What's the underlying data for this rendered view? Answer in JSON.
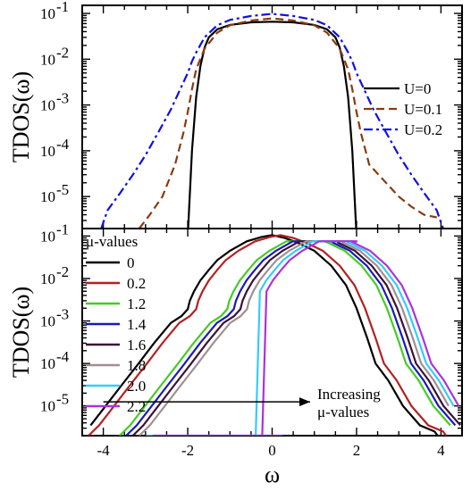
{
  "chart_data": [
    {
      "type": "line",
      "panel": "top",
      "ylabel": "TDOS(ω)",
      "yscale": "log",
      "xlim": [
        -4.5,
        4.5
      ],
      "ylim": [
        2e-06,
        0.15
      ],
      "yticks": [
        {
          "value": 0.1,
          "label": "10",
          "exp": "-1"
        },
        {
          "value": 0.01,
          "label": "10",
          "exp": "-2"
        },
        {
          "value": 0.001,
          "label": "10",
          "exp": "-3"
        },
        {
          "value": 0.0001,
          "label": "10",
          "exp": "-4"
        },
        {
          "value": 1e-05,
          "label": "10",
          "exp": "-5"
        }
      ],
      "legend_position": "right",
      "series": [
        {
          "name": "U=0",
          "color": "#000000",
          "dash": "solid",
          "x": [
            -1.99,
            -1.9,
            -1.8,
            -1.7,
            -1.6,
            -1.5,
            -1.3,
            -1.0,
            -0.5,
            0,
            0.5,
            1.0,
            1.3,
            1.5,
            1.6,
            1.7,
            1.8,
            1.9,
            1.99
          ],
          "y": [
            2e-06,
            0.0001,
            0.0015,
            0.007,
            0.018,
            0.03,
            0.045,
            0.056,
            0.064,
            0.066,
            0.064,
            0.056,
            0.045,
            0.03,
            0.018,
            0.007,
            0.0015,
            0.0001,
            2e-06
          ]
        },
        {
          "name": "U=0.1",
          "color": "#8b3a0f",
          "dash": "dashed",
          "x": [
            -3.15,
            -2.9,
            -2.6,
            -2.3,
            -2.1,
            -2.0,
            -1.9,
            -1.8,
            -1.6,
            -1.3,
            -1.0,
            -0.5,
            0,
            0.5,
            1.0,
            1.3,
            1.6,
            1.8,
            1.9,
            2.0,
            2.1,
            2.3,
            2.6,
            3.0,
            3.3,
            3.6,
            3.9
          ],
          "y": [
            2e-06,
            4e-06,
            1e-05,
            5e-05,
            0.00025,
            0.0007,
            0.0022,
            0.006,
            0.017,
            0.038,
            0.055,
            0.07,
            0.078,
            0.07,
            0.055,
            0.038,
            0.017,
            0.006,
            0.0022,
            0.0007,
            0.00025,
            5e-05,
            2.5e-05,
            1e-05,
            6e-06,
            4e-06,
            3.5e-06
          ]
        },
        {
          "name": "U=0.2",
          "color": "#1010e0",
          "dash": "dashdot",
          "x": [
            -4.05,
            -3.9,
            -3.6,
            -3.3,
            -3.0,
            -2.7,
            -2.4,
            -2.2,
            -2.0,
            -1.9,
            -1.8,
            -1.6,
            -1.3,
            -1.0,
            -0.5,
            0,
            0.5,
            1.0,
            1.3,
            1.6,
            1.8,
            1.9,
            2.0,
            2.2,
            2.4,
            2.7,
            3.0,
            3.3,
            3.6,
            3.9,
            4.05
          ],
          "y": [
            2e-06,
            5e-06,
            1.2e-05,
            3e-05,
            8e-05,
            0.00025,
            0.0008,
            0.002,
            0.005,
            0.009,
            0.014,
            0.03,
            0.055,
            0.072,
            0.088,
            0.098,
            0.088,
            0.072,
            0.055,
            0.03,
            0.014,
            0.009,
            0.005,
            0.002,
            0.0008,
            0.00025,
            8e-05,
            3e-05,
            1.2e-05,
            5e-06,
            2e-06
          ]
        }
      ]
    },
    {
      "type": "line",
      "panel": "bottom",
      "xlabel": "ω",
      "ylabel": "TDOS(ω)",
      "yscale": "log",
      "xlim": [
        -4.5,
        4.5
      ],
      "ylim": [
        2e-06,
        0.15
      ],
      "xticks": [
        -4,
        -2,
        0,
        2,
        4
      ],
      "yticks": [
        {
          "value": 0.1,
          "label": "10",
          "exp": "-1"
        },
        {
          "value": 0.01,
          "label": "10",
          "exp": "-2"
        },
        {
          "value": 0.001,
          "label": "10",
          "exp": "-3"
        },
        {
          "value": 0.0001,
          "label": "10",
          "exp": "-4"
        },
        {
          "value": 1e-05,
          "label": "10",
          "exp": "-5"
        }
      ],
      "legend_title": "μ-values",
      "legend_position": "top-left",
      "annotation": {
        "line1": "Increasing",
        "line2": "μ-values",
        "arrow_from_x": -4.0,
        "arrow_to_x": 0.9,
        "arrow_y": 1.25e-05
      },
      "series": [
        {
          "name": "0",
          "color": "#000000",
          "shift": 0.0
        },
        {
          "name": "0.2",
          "color": "#b22222",
          "shift": 0.2
        },
        {
          "name": "1.2",
          "color": "#44cc22",
          "shift": 1.2
        },
        {
          "name": "1.4",
          "color": "#1a1ab8",
          "shift": 1.4
        },
        {
          "name": "1.6",
          "color": "#3a1236",
          "shift": 1.6
        },
        {
          "name": "1.8",
          "color": "#a09090",
          "shift": 1.8
        },
        {
          "name": "2.0",
          "color": "#33ccff",
          "shift": 2.0
        },
        {
          "name": "2.2",
          "color": "#aa33dd",
          "shift": 2.2
        }
      ]
    }
  ]
}
